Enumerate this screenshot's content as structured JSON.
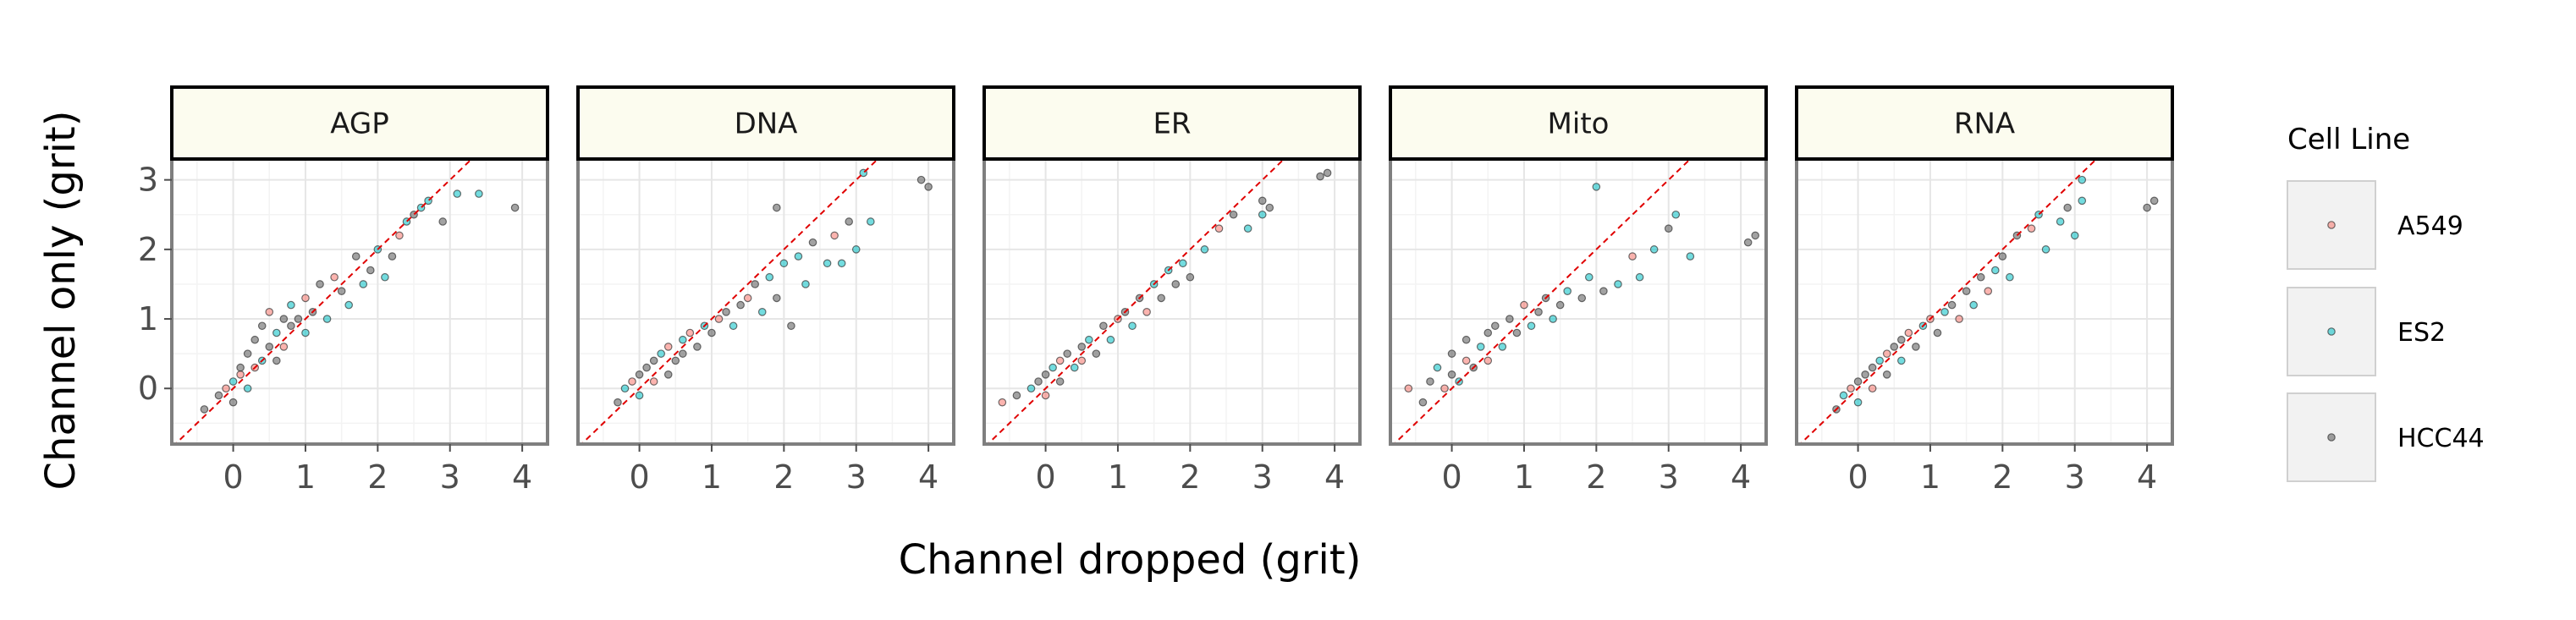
{
  "chart_data": {
    "type": "scatter",
    "xlabel": "Channel dropped (grit)",
    "ylabel": "Channel only (grit)",
    "xlim": [
      -0.85,
      4.35
    ],
    "ylim": [
      -0.8,
      3.3
    ],
    "x_ticks": [
      0,
      1,
      2,
      3,
      4
    ],
    "y_ticks": [
      0,
      1,
      2,
      3
    ],
    "grid": true,
    "reference_line": "y = x (dashed red)",
    "legend": {
      "title": "Cell Line",
      "placement": "right",
      "entries": [
        {
          "name": "A549",
          "color": "#F8766D"
        },
        {
          "name": "ES2",
          "color": "#00BFC4"
        },
        {
          "name": "HCC44",
          "color": "#555555"
        }
      ]
    },
    "series": [
      {
        "name": "A549",
        "color": "#F8766D"
      },
      {
        "name": "ES2",
        "color": "#00BFC4"
      },
      {
        "name": "HCC44",
        "color": "#555555"
      }
    ],
    "panels": [
      {
        "label": "AGP",
        "points": [
          {
            "x": -0.4,
            "y": -0.3,
            "s": 2
          },
          {
            "x": -0.2,
            "y": -0.1,
            "s": 2
          },
          {
            "x": -0.1,
            "y": 0.0,
            "s": 0
          },
          {
            "x": 0.0,
            "y": 0.1,
            "s": 1
          },
          {
            "x": 0.0,
            "y": -0.2,
            "s": 2
          },
          {
            "x": 0.1,
            "y": 0.2,
            "s": 0
          },
          {
            "x": 0.1,
            "y": 0.3,
            "s": 2
          },
          {
            "x": 0.2,
            "y": 0.0,
            "s": 1
          },
          {
            "x": 0.2,
            "y": 0.5,
            "s": 2
          },
          {
            "x": 0.3,
            "y": 0.3,
            "s": 0
          },
          {
            "x": 0.3,
            "y": 0.7,
            "s": 2
          },
          {
            "x": 0.4,
            "y": 0.4,
            "s": 1
          },
          {
            "x": 0.4,
            "y": 0.9,
            "s": 2
          },
          {
            "x": 0.5,
            "y": 0.6,
            "s": 2
          },
          {
            "x": 0.5,
            "y": 1.1,
            "s": 0
          },
          {
            "x": 0.6,
            "y": 0.8,
            "s": 1
          },
          {
            "x": 0.6,
            "y": 0.4,
            "s": 2
          },
          {
            "x": 0.7,
            "y": 1.0,
            "s": 2
          },
          {
            "x": 0.7,
            "y": 0.6,
            "s": 0
          },
          {
            "x": 0.8,
            "y": 1.2,
            "s": 1
          },
          {
            "x": 0.8,
            "y": 0.9,
            "s": 2
          },
          {
            "x": 0.9,
            "y": 1.0,
            "s": 2
          },
          {
            "x": 1.0,
            "y": 0.8,
            "s": 1
          },
          {
            "x": 1.0,
            "y": 1.3,
            "s": 0
          },
          {
            "x": 1.1,
            "y": 1.1,
            "s": 2
          },
          {
            "x": 1.2,
            "y": 1.5,
            "s": 2
          },
          {
            "x": 1.3,
            "y": 1.0,
            "s": 1
          },
          {
            "x": 1.4,
            "y": 1.6,
            "s": 0
          },
          {
            "x": 1.5,
            "y": 1.4,
            "s": 2
          },
          {
            "x": 1.6,
            "y": 1.2,
            "s": 1
          },
          {
            "x": 1.7,
            "y": 1.9,
            "s": 2
          },
          {
            "x": 1.8,
            "y": 1.5,
            "s": 1
          },
          {
            "x": 1.9,
            "y": 1.7,
            "s": 2
          },
          {
            "x": 2.0,
            "y": 2.0,
            "s": 1
          },
          {
            "x": 2.1,
            "y": 1.6,
            "s": 1
          },
          {
            "x": 2.2,
            "y": 1.9,
            "s": 2
          },
          {
            "x": 2.3,
            "y": 2.2,
            "s": 0
          },
          {
            "x": 2.4,
            "y": 2.4,
            "s": 1
          },
          {
            "x": 2.5,
            "y": 2.5,
            "s": 2
          },
          {
            "x": 2.6,
            "y": 2.6,
            "s": 1
          },
          {
            "x": 2.7,
            "y": 2.7,
            "s": 1
          },
          {
            "x": 2.9,
            "y": 2.4,
            "s": 2
          },
          {
            "x": 3.1,
            "y": 2.8,
            "s": 1
          },
          {
            "x": 3.4,
            "y": 2.8,
            "s": 1
          },
          {
            "x": 3.9,
            "y": 2.6,
            "s": 2
          }
        ]
      },
      {
        "label": "DNA",
        "points": [
          {
            "x": -0.3,
            "y": -0.2,
            "s": 2
          },
          {
            "x": -0.2,
            "y": 0.0,
            "s": 1
          },
          {
            "x": -0.1,
            "y": 0.1,
            "s": 0
          },
          {
            "x": 0.0,
            "y": 0.2,
            "s": 2
          },
          {
            "x": 0.0,
            "y": -0.1,
            "s": 1
          },
          {
            "x": 0.1,
            "y": 0.3,
            "s": 2
          },
          {
            "x": 0.2,
            "y": 0.1,
            "s": 0
          },
          {
            "x": 0.2,
            "y": 0.4,
            "s": 2
          },
          {
            "x": 0.3,
            "y": 0.5,
            "s": 1
          },
          {
            "x": 0.4,
            "y": 0.2,
            "s": 2
          },
          {
            "x": 0.4,
            "y": 0.6,
            "s": 0
          },
          {
            "x": 0.5,
            "y": 0.4,
            "s": 2
          },
          {
            "x": 0.6,
            "y": 0.7,
            "s": 1
          },
          {
            "x": 0.6,
            "y": 0.5,
            "s": 2
          },
          {
            "x": 0.7,
            "y": 0.8,
            "s": 0
          },
          {
            "x": 0.8,
            "y": 0.6,
            "s": 2
          },
          {
            "x": 0.9,
            "y": 0.9,
            "s": 1
          },
          {
            "x": 1.0,
            "y": 0.8,
            "s": 2
          },
          {
            "x": 1.1,
            "y": 1.0,
            "s": 0
          },
          {
            "x": 1.2,
            "y": 1.1,
            "s": 2
          },
          {
            "x": 1.3,
            "y": 0.9,
            "s": 1
          },
          {
            "x": 1.4,
            "y": 1.2,
            "s": 2
          },
          {
            "x": 1.5,
            "y": 1.3,
            "s": 0
          },
          {
            "x": 1.6,
            "y": 1.5,
            "s": 2
          },
          {
            "x": 1.7,
            "y": 1.1,
            "s": 1
          },
          {
            "x": 1.8,
            "y": 1.6,
            "s": 1
          },
          {
            "x": 1.9,
            "y": 1.3,
            "s": 2
          },
          {
            "x": 2.0,
            "y": 1.8,
            "s": 1
          },
          {
            "x": 2.1,
            "y": 0.9,
            "s": 2
          },
          {
            "x": 2.2,
            "y": 1.9,
            "s": 1
          },
          {
            "x": 2.3,
            "y": 1.5,
            "s": 1
          },
          {
            "x": 2.4,
            "y": 2.1,
            "s": 2
          },
          {
            "x": 2.6,
            "y": 1.8,
            "s": 1
          },
          {
            "x": 2.7,
            "y": 2.2,
            "s": 0
          },
          {
            "x": 2.8,
            "y": 1.8,
            "s": 1
          },
          {
            "x": 2.9,
            "y": 2.4,
            "s": 2
          },
          {
            "x": 3.0,
            "y": 2.0,
            "s": 1
          },
          {
            "x": 3.1,
            "y": 3.1,
            "s": 1
          },
          {
            "x": 3.2,
            "y": 2.4,
            "s": 1
          },
          {
            "x": 1.9,
            "y": 2.6,
            "s": 2
          },
          {
            "x": 3.9,
            "y": 3.0,
            "s": 2
          },
          {
            "x": 4.0,
            "y": 2.9,
            "s": 2
          }
        ]
      },
      {
        "label": "ER",
        "points": [
          {
            "x": -0.6,
            "y": -0.2,
            "s": 0
          },
          {
            "x": -0.4,
            "y": -0.1,
            "s": 2
          },
          {
            "x": -0.2,
            "y": 0.0,
            "s": 1
          },
          {
            "x": -0.1,
            "y": 0.1,
            "s": 2
          },
          {
            "x": 0.0,
            "y": -0.1,
            "s": 0
          },
          {
            "x": 0.0,
            "y": 0.2,
            "s": 2
          },
          {
            "x": 0.1,
            "y": 0.3,
            "s": 1
          },
          {
            "x": 0.2,
            "y": 0.1,
            "s": 2
          },
          {
            "x": 0.2,
            "y": 0.4,
            "s": 0
          },
          {
            "x": 0.3,
            "y": 0.5,
            "s": 2
          },
          {
            "x": 0.4,
            "y": 0.3,
            "s": 1
          },
          {
            "x": 0.5,
            "y": 0.6,
            "s": 2
          },
          {
            "x": 0.5,
            "y": 0.4,
            "s": 0
          },
          {
            "x": 0.6,
            "y": 0.7,
            "s": 1
          },
          {
            "x": 0.7,
            "y": 0.5,
            "s": 2
          },
          {
            "x": 0.8,
            "y": 0.9,
            "s": 2
          },
          {
            "x": 0.9,
            "y": 0.7,
            "s": 1
          },
          {
            "x": 1.0,
            "y": 1.0,
            "s": 0
          },
          {
            "x": 1.1,
            "y": 1.1,
            "s": 2
          },
          {
            "x": 1.2,
            "y": 0.9,
            "s": 1
          },
          {
            "x": 1.3,
            "y": 1.3,
            "s": 2
          },
          {
            "x": 1.4,
            "y": 1.1,
            "s": 0
          },
          {
            "x": 1.5,
            "y": 1.5,
            "s": 1
          },
          {
            "x": 1.6,
            "y": 1.3,
            "s": 2
          },
          {
            "x": 1.7,
            "y": 1.7,
            "s": 1
          },
          {
            "x": 1.8,
            "y": 1.5,
            "s": 2
          },
          {
            "x": 1.9,
            "y": 1.8,
            "s": 1
          },
          {
            "x": 2.0,
            "y": 1.6,
            "s": 2
          },
          {
            "x": 2.2,
            "y": 2.0,
            "s": 1
          },
          {
            "x": 2.4,
            "y": 2.3,
            "s": 0
          },
          {
            "x": 2.6,
            "y": 2.5,
            "s": 2
          },
          {
            "x": 2.8,
            "y": 2.3,
            "s": 1
          },
          {
            "x": 3.0,
            "y": 2.7,
            "s": 2
          },
          {
            "x": 3.0,
            "y": 2.5,
            "s": 1
          },
          {
            "x": 3.1,
            "y": 2.6,
            "s": 2
          },
          {
            "x": 3.8,
            "y": 3.05,
            "s": 2
          },
          {
            "x": 3.9,
            "y": 3.1,
            "s": 2
          }
        ]
      },
      {
        "label": "Mito",
        "points": [
          {
            "x": -0.6,
            "y": 0.0,
            "s": 0
          },
          {
            "x": -0.4,
            "y": -0.2,
            "s": 2
          },
          {
            "x": -0.3,
            "y": 0.1,
            "s": 2
          },
          {
            "x": -0.2,
            "y": 0.3,
            "s": 1
          },
          {
            "x": -0.1,
            "y": 0.0,
            "s": 0
          },
          {
            "x": 0.0,
            "y": 0.2,
            "s": 2
          },
          {
            "x": 0.0,
            "y": 0.5,
            "s": 2
          },
          {
            "x": 0.1,
            "y": 0.1,
            "s": 1
          },
          {
            "x": 0.2,
            "y": 0.4,
            "s": 0
          },
          {
            "x": 0.2,
            "y": 0.7,
            "s": 2
          },
          {
            "x": 0.3,
            "y": 0.3,
            "s": 2
          },
          {
            "x": 0.4,
            "y": 0.6,
            "s": 1
          },
          {
            "x": 0.5,
            "y": 0.8,
            "s": 2
          },
          {
            "x": 0.5,
            "y": 0.4,
            "s": 0
          },
          {
            "x": 0.6,
            "y": 0.9,
            "s": 2
          },
          {
            "x": 0.7,
            "y": 0.6,
            "s": 1
          },
          {
            "x": 0.8,
            "y": 1.0,
            "s": 2
          },
          {
            "x": 0.9,
            "y": 0.8,
            "s": 2
          },
          {
            "x": 1.0,
            "y": 1.2,
            "s": 0
          },
          {
            "x": 1.1,
            "y": 0.9,
            "s": 1
          },
          {
            "x": 1.2,
            "y": 1.1,
            "s": 2
          },
          {
            "x": 1.3,
            "y": 1.3,
            "s": 2
          },
          {
            "x": 1.4,
            "y": 1.0,
            "s": 1
          },
          {
            "x": 1.5,
            "y": 1.2,
            "s": 2
          },
          {
            "x": 1.6,
            "y": 1.4,
            "s": 1
          },
          {
            "x": 1.8,
            "y": 1.3,
            "s": 2
          },
          {
            "x": 1.9,
            "y": 1.6,
            "s": 1
          },
          {
            "x": 2.0,
            "y": 2.9,
            "s": 1
          },
          {
            "x": 2.1,
            "y": 1.4,
            "s": 2
          },
          {
            "x": 2.3,
            "y": 1.5,
            "s": 1
          },
          {
            "x": 2.5,
            "y": 1.9,
            "s": 0
          },
          {
            "x": 2.6,
            "y": 1.6,
            "s": 1
          },
          {
            "x": 2.8,
            "y": 2.0,
            "s": 1
          },
          {
            "x": 3.0,
            "y": 2.3,
            "s": 2
          },
          {
            "x": 3.1,
            "y": 2.5,
            "s": 1
          },
          {
            "x": 3.3,
            "y": 1.9,
            "s": 1
          },
          {
            "x": 4.1,
            "y": 2.1,
            "s": 2
          },
          {
            "x": 4.2,
            "y": 2.2,
            "s": 2
          }
        ]
      },
      {
        "label": "RNA",
        "points": [
          {
            "x": -0.3,
            "y": -0.3,
            "s": 2
          },
          {
            "x": -0.2,
            "y": -0.1,
            "s": 1
          },
          {
            "x": -0.1,
            "y": 0.0,
            "s": 0
          },
          {
            "x": 0.0,
            "y": 0.1,
            "s": 2
          },
          {
            "x": 0.0,
            "y": -0.2,
            "s": 1
          },
          {
            "x": 0.1,
            "y": 0.2,
            "s": 2
          },
          {
            "x": 0.2,
            "y": 0.0,
            "s": 0
          },
          {
            "x": 0.2,
            "y": 0.3,
            "s": 2
          },
          {
            "x": 0.3,
            "y": 0.4,
            "s": 1
          },
          {
            "x": 0.4,
            "y": 0.2,
            "s": 2
          },
          {
            "x": 0.4,
            "y": 0.5,
            "s": 0
          },
          {
            "x": 0.5,
            "y": 0.6,
            "s": 2
          },
          {
            "x": 0.6,
            "y": 0.4,
            "s": 1
          },
          {
            "x": 0.6,
            "y": 0.7,
            "s": 2
          },
          {
            "x": 0.7,
            "y": 0.8,
            "s": 0
          },
          {
            "x": 0.8,
            "y": 0.6,
            "s": 2
          },
          {
            "x": 0.9,
            "y": 0.9,
            "s": 1
          },
          {
            "x": 1.0,
            "y": 1.0,
            "s": 0
          },
          {
            "x": 1.1,
            "y": 0.8,
            "s": 2
          },
          {
            "x": 1.2,
            "y": 1.1,
            "s": 1
          },
          {
            "x": 1.3,
            "y": 1.2,
            "s": 2
          },
          {
            "x": 1.4,
            "y": 1.0,
            "s": 0
          },
          {
            "x": 1.5,
            "y": 1.4,
            "s": 2
          },
          {
            "x": 1.6,
            "y": 1.2,
            "s": 1
          },
          {
            "x": 1.7,
            "y": 1.6,
            "s": 2
          },
          {
            "x": 1.8,
            "y": 1.4,
            "s": 0
          },
          {
            "x": 1.9,
            "y": 1.7,
            "s": 1
          },
          {
            "x": 2.0,
            "y": 1.9,
            "s": 2
          },
          {
            "x": 2.1,
            "y": 1.6,
            "s": 1
          },
          {
            "x": 2.2,
            "y": 2.2,
            "s": 2
          },
          {
            "x": 2.4,
            "y": 2.3,
            "s": 0
          },
          {
            "x": 2.5,
            "y": 2.5,
            "s": 1
          },
          {
            "x": 2.6,
            "y": 2.0,
            "s": 1
          },
          {
            "x": 2.8,
            "y": 2.4,
            "s": 1
          },
          {
            "x": 2.9,
            "y": 2.6,
            "s": 2
          },
          {
            "x": 3.0,
            "y": 2.2,
            "s": 1
          },
          {
            "x": 3.1,
            "y": 3.0,
            "s": 1
          },
          {
            "x": 3.1,
            "y": 2.7,
            "s": 1
          },
          {
            "x": 4.0,
            "y": 2.6,
            "s": 2
          },
          {
            "x": 4.1,
            "y": 2.7,
            "s": 2
          }
        ]
      }
    ]
  }
}
